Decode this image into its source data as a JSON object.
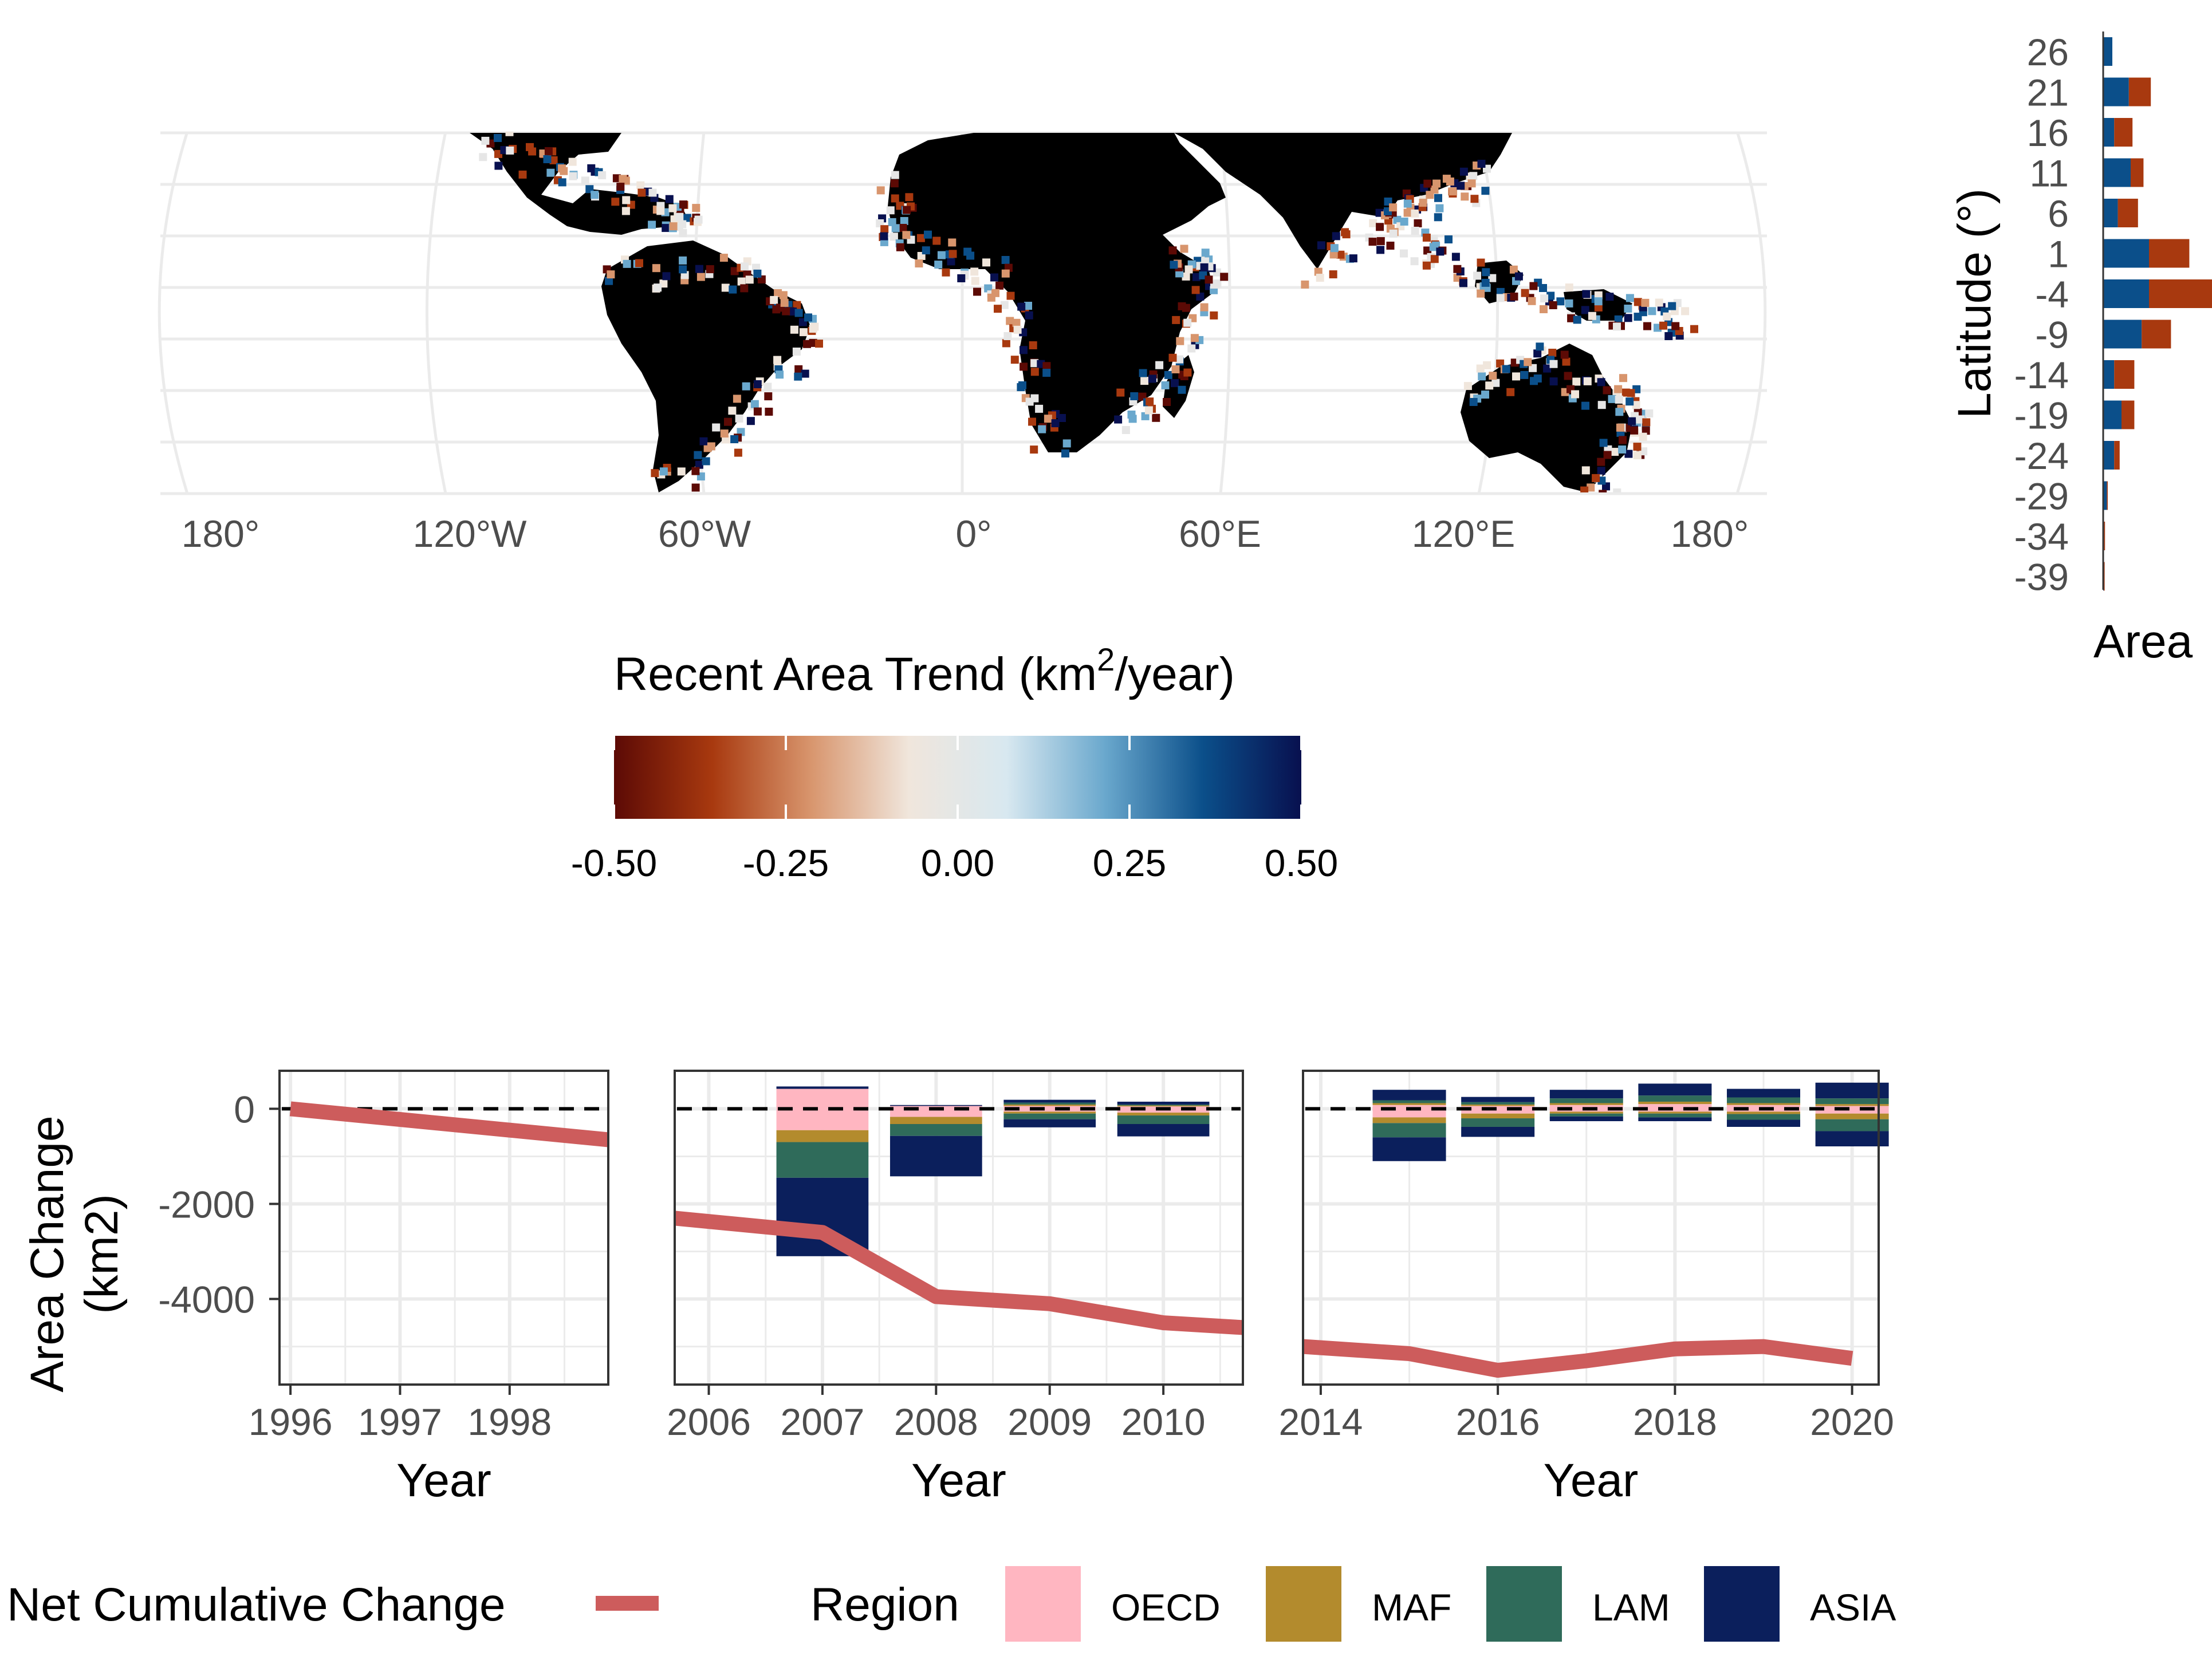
{
  "colors": {
    "gain": "#0b4f8a",
    "loss": "#a8390f",
    "net_line": "#cd5c5c",
    "grid": "#ebebeb",
    "land": "#000000",
    "OECD": "#ffb6c1",
    "MAF": "#b38b2d",
    "LAM": "#2f6b5a",
    "ASIA": "#0b1f5c"
  },
  "map": {
    "x_ticks": [
      "180°",
      "120°W",
      "60°W",
      "0°",
      "60°E",
      "120°E",
      "180°"
    ]
  },
  "colorbar": {
    "title_prefix": "Recent Area Trend (km",
    "title_sup": "2",
    "title_suffix": "/year)",
    "ticks": [
      "-0.50",
      "-0.25",
      "0.00",
      "0.25",
      "0.50"
    ],
    "stops": [
      "#5c0a05",
      "#a8390f",
      "#d8956d",
      "#f0e6dc",
      "#d8e8f0",
      "#6aa8cd",
      "#0b4f8a",
      "#08104f"
    ]
  },
  "lat_panel": {
    "ylabel": "Latitude (°)",
    "xlabel": "Area",
    "ticks": [
      "26",
      "21",
      "16",
      "11",
      "6",
      "1",
      "-4",
      "-9",
      "-14",
      "-19",
      "-24",
      "-29",
      "-34",
      "-39"
    ]
  },
  "legend": {
    "net_label": "Net Cumulative Change",
    "region_title": "Region",
    "regions": [
      "OECD",
      "MAF",
      "LAM",
      "ASIA"
    ]
  },
  "chart_data": [
    {
      "type": "bar",
      "title": "",
      "orientation": "horizontal",
      "ylabel": "Latitude (°)",
      "xlabel": "Area",
      "categories": [
        26,
        21,
        16,
        11,
        6,
        1,
        -4,
        -9,
        -14,
        -19,
        -24,
        -29,
        -34,
        -39
      ],
      "series": [
        {
          "values": [
            5,
            14,
            6,
            15,
            8,
            25,
            25,
            21,
            6,
            10,
            6,
            2,
            0.5,
            0.3
          ]
        },
        {
          "values": [
            0,
            12,
            10,
            7,
            11,
            22,
            35,
            16,
            11,
            7,
            3,
            0.5,
            0.5,
            0.5
          ]
        }
      ]
    },
    {
      "type": "bar+line",
      "xlabel": "Year",
      "ylabel": "Area Change\n(km2)",
      "ylim": [
        -5800,
        800
      ],
      "yticks": [
        0,
        -2000,
        -4000
      ],
      "panels": [
        {
          "xlim": [
            1995.9,
            1998.9
          ],
          "xticks": [
            1996,
            1997,
            1998
          ],
          "net_cumulative": {
            "x": [
              1996,
              1998.9
            ],
            "y": [
              0,
              -650
            ]
          },
          "bars": []
        },
        {
          "xlim": [
            2005.7,
            2010.7
          ],
          "xticks": [
            2006,
            2007,
            2008,
            2009,
            2010
          ],
          "net_cumulative": {
            "x": [
              2005.7,
              2007,
              2008,
              2009,
              2010,
              2010.7
            ],
            "y": [
              -2300,
              -2600,
              -3950,
              -4100,
              -4500,
              -4600
            ]
          },
          "bars": [
            {
              "year": 2007,
              "OECD": [
                420,
                -450
              ],
              "MAF": [
                0,
                -250
              ],
              "LAM": [
                0,
                -750
              ],
              "ASIA": [
                50,
                -1650
              ]
            },
            {
              "year": 2008,
              "OECD": [
                60,
                -170
              ],
              "MAF": [
                0,
                -150
              ],
              "LAM": [
                0,
                -250
              ],
              "ASIA": [
                20,
                -850
              ]
            },
            {
              "year": 2009,
              "OECD": [
                60,
                -60
              ],
              "MAF": [
                30,
                -40
              ],
              "LAM": [
                40,
                -120
              ],
              "ASIA": [
                60,
                -170
              ]
            },
            {
              "year": 2010,
              "OECD": [
                50,
                -80
              ],
              "MAF": [
                20,
                -60
              ],
              "LAM": [
                20,
                -180
              ],
              "ASIA": [
                60,
                -260
              ]
            }
          ]
        },
        {
          "xlim": [
            2013.8,
            2020.3
          ],
          "xticks": [
            2014,
            2016,
            2018,
            2020
          ],
          "net_cumulative": {
            "x": [
              2013.8,
              2015,
              2016,
              2017,
              2018,
              2019,
              2020
            ],
            "y": [
              -5000,
              -5150,
              -5500,
              -5300,
              -5050,
              -5000,
              -5250
            ]
          },
          "bars": [
            {
              "year": 2015,
              "OECD": [
                80,
                -180
              ],
              "MAF": [
                40,
                -120
              ],
              "LAM": [
                60,
                -300
              ],
              "ASIA": [
                220,
                -500
              ]
            },
            {
              "year": 2016,
              "OECD": [
                60,
                -100
              ],
              "MAF": [
                30,
                -100
              ],
              "LAM": [
                50,
                -180
              ],
              "ASIA": [
                110,
                -210
              ]
            },
            {
              "year": 2017,
              "OECD": [
                80,
                -60
              ],
              "MAF": [
                40,
                -40
              ],
              "LAM": [
                100,
                -60
              ],
              "ASIA": [
                180,
                -100
              ]
            },
            {
              "year": 2018,
              "OECD": [
                100,
                -60
              ],
              "MAF": [
                50,
                -40
              ],
              "LAM": [
                130,
                -80
              ],
              "ASIA": [
                250,
                -80
              ]
            },
            {
              "year": 2019,
              "OECD": [
                80,
                -60
              ],
              "MAF": [
                40,
                -50
              ],
              "LAM": [
                120,
                -120
              ],
              "ASIA": [
                180,
                -150
              ]
            },
            {
              "year": 2020,
              "OECD": [
                60,
                -100
              ],
              "MAF": [
                40,
                -120
              ],
              "LAM": [
                120,
                -250
              ],
              "ASIA": [
                330,
                -320
              ]
            }
          ]
        }
      ]
    }
  ]
}
